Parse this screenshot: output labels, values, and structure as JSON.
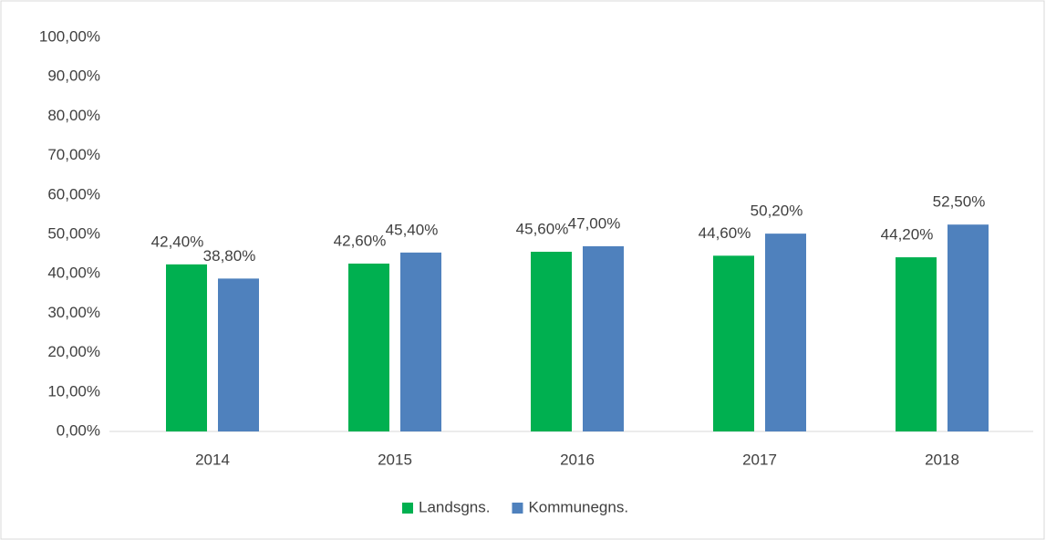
{
  "chart_data": {
    "type": "bar",
    "categories": [
      "2014",
      "2015",
      "2016",
      "2017",
      "2018"
    ],
    "series": [
      {
        "name": "Landsgns.",
        "color": "#00b050",
        "values": [
          42.4,
          42.6,
          45.6,
          44.6,
          44.2
        ],
        "value_labels": [
          "42,40%",
          "42,60%",
          "45,60%",
          "44,60%",
          "44,20%"
        ]
      },
      {
        "name": "Kommunegns.",
        "color": "#4f81bd",
        "values": [
          38.8,
          45.4,
          47.0,
          50.2,
          52.5
        ],
        "value_labels": [
          "38,80%",
          "45,40%",
          "47,00%",
          "50,20%",
          "52,50%"
        ]
      }
    ],
    "ylim": [
      0,
      100
    ],
    "yticks": [
      {
        "value": 0,
        "label": "0,00%"
      },
      {
        "value": 10,
        "label": "10,00%"
      },
      {
        "value": 20,
        "label": "20,00%"
      },
      {
        "value": 30,
        "label": "30,00%"
      },
      {
        "value": 40,
        "label": "40,00%"
      },
      {
        "value": 50,
        "label": "50,00%"
      },
      {
        "value": 60,
        "label": "60,00%"
      },
      {
        "value": 70,
        "label": "70,00%"
      },
      {
        "value": 80,
        "label": "80,00%"
      },
      {
        "value": 90,
        "label": "90,00%"
      },
      {
        "value": 100,
        "label": "100,00%"
      }
    ],
    "grid": false,
    "legend": "bottom"
  }
}
